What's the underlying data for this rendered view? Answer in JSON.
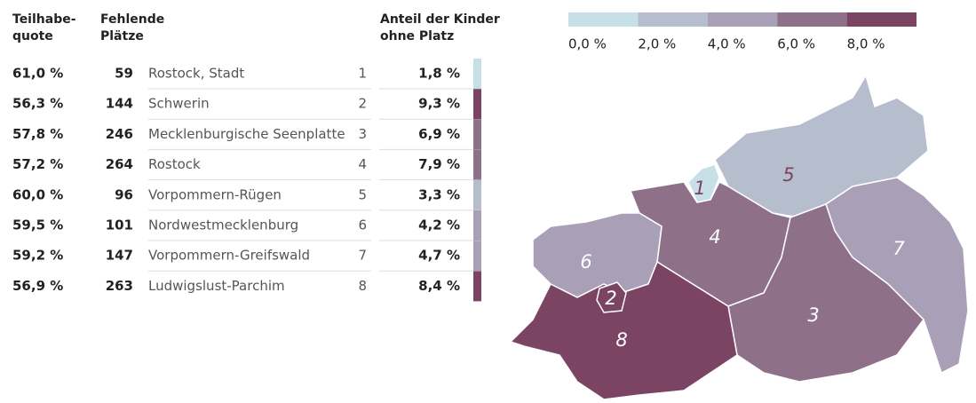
{
  "table": {
    "headers": [
      "Teilhabe-\nquote",
      "Fehlende\nPlätze",
      "Anteil der Kinder\nohne Platz"
    ],
    "rows": [
      [
        "61,0 %",
        "59",
        "Rostock, Stadt",
        "1",
        "1,8 %",
        "#c7dfe6"
      ],
      [
        "56,3 %",
        "144",
        "Schwerin",
        "2",
        "9,3 %",
        "#7b4462"
      ],
      [
        "57,8 %",
        "246",
        "Mecklenburgische Seenplatte",
        "3",
        "6,9 %",
        "#8f7089"
      ],
      [
        "57,2 %",
        "264",
        "Rostock",
        "4",
        "7,9 %",
        "#8f7089"
      ],
      [
        "60,0 %",
        "96",
        "Vorpommern-Rügen",
        "5",
        "3,3 %",
        "#b6bdcc"
      ],
      [
        "59,5 %",
        "101",
        "Nordwestmecklenburg",
        "6",
        "4,2 %",
        "#a9a0b7"
      ],
      [
        "59,2 %",
        "147",
        "Vorpommern-Greifswald",
        "7",
        "4,7 %",
        "#a9a0b7"
      ],
      [
        "56,9 %",
        "263",
        "Ludwigslust-Parchim",
        "8",
        "8,4 %",
        "#7b4462"
      ]
    ]
  },
  "legend": {
    "colors": [
      "#c7dfe6",
      "#b6bdcc",
      "#a9a0b7",
      "#8f7089",
      "#7b4462"
    ],
    "labels": [
      "0,0 %",
      "2,0 %",
      "4,0 %",
      "6,0 %",
      "8,0 %"
    ]
  }
}
